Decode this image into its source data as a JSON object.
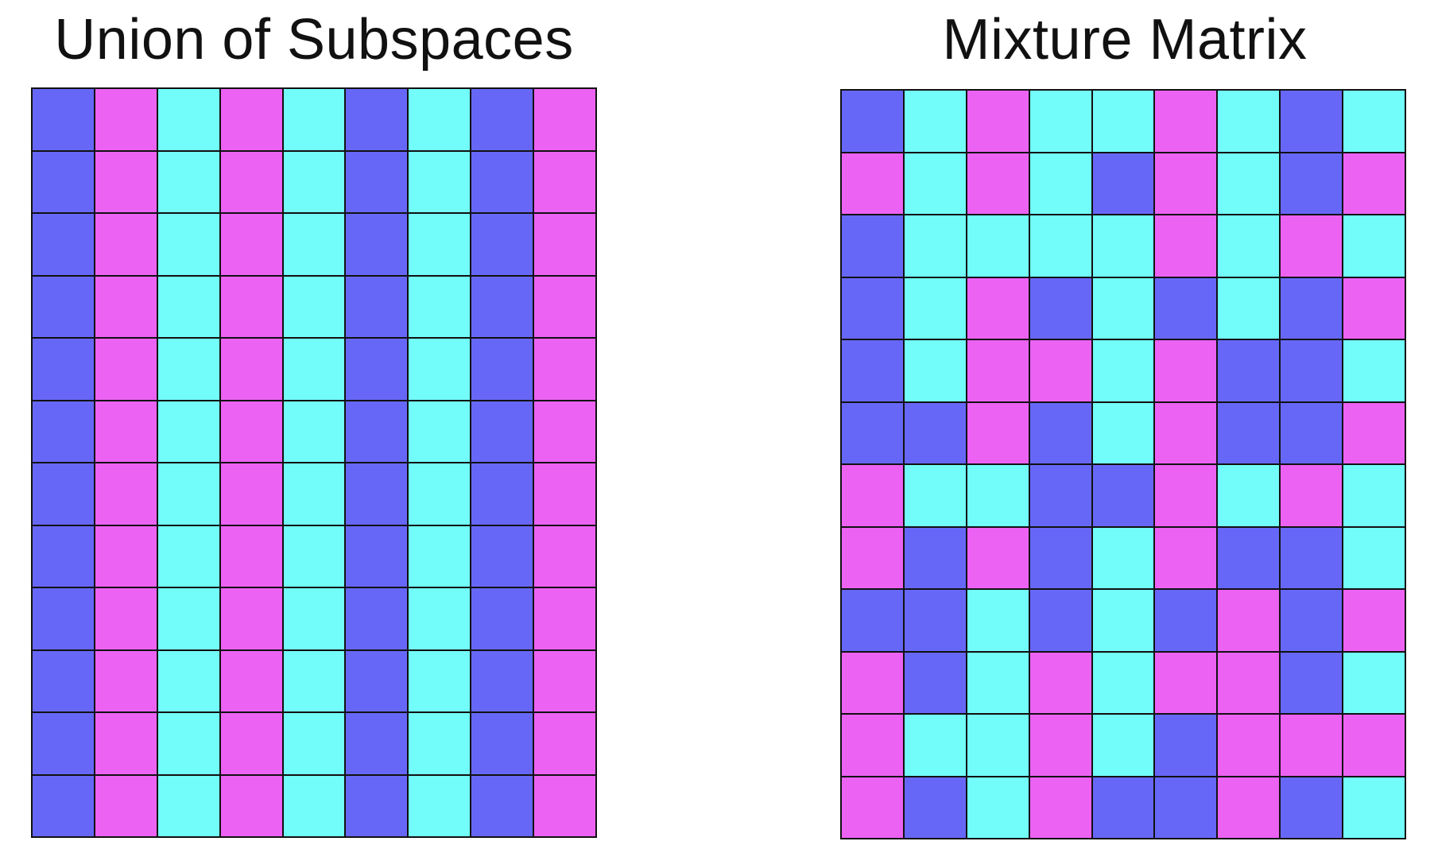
{
  "colors": {
    "B": "#6767f7",
    "M": "#ec62f3",
    "C": "#72fcfa"
  },
  "left_panel": {
    "title": "Union of Subspaces",
    "rows": [
      [
        "B",
        "M",
        "C",
        "M",
        "C",
        "B",
        "C",
        "B",
        "M"
      ],
      [
        "B",
        "M",
        "C",
        "M",
        "C",
        "B",
        "C",
        "B",
        "M"
      ],
      [
        "B",
        "M",
        "C",
        "M",
        "C",
        "B",
        "C",
        "B",
        "M"
      ],
      [
        "B",
        "M",
        "C",
        "M",
        "C",
        "B",
        "C",
        "B",
        "M"
      ],
      [
        "B",
        "M",
        "C",
        "M",
        "C",
        "B",
        "C",
        "B",
        "M"
      ],
      [
        "B",
        "M",
        "C",
        "M",
        "C",
        "B",
        "C",
        "B",
        "M"
      ],
      [
        "B",
        "M",
        "C",
        "M",
        "C",
        "B",
        "C",
        "B",
        "M"
      ],
      [
        "B",
        "M",
        "C",
        "M",
        "C",
        "B",
        "C",
        "B",
        "M"
      ],
      [
        "B",
        "M",
        "C",
        "M",
        "C",
        "B",
        "C",
        "B",
        "M"
      ],
      [
        "B",
        "M",
        "C",
        "M",
        "C",
        "B",
        "C",
        "B",
        "M"
      ],
      [
        "B",
        "M",
        "C",
        "M",
        "C",
        "B",
        "C",
        "B",
        "M"
      ],
      [
        "B",
        "M",
        "C",
        "M",
        "C",
        "B",
        "C",
        "B",
        "M"
      ]
    ]
  },
  "right_panel": {
    "title": "Mixture Matrix",
    "rows": [
      [
        "B",
        "C",
        "M",
        "C",
        "C",
        "M",
        "C",
        "B",
        "C"
      ],
      [
        "M",
        "C",
        "M",
        "C",
        "B",
        "M",
        "C",
        "B",
        "M"
      ],
      [
        "B",
        "C",
        "C",
        "C",
        "C",
        "M",
        "C",
        "M",
        "C"
      ],
      [
        "B",
        "C",
        "M",
        "B",
        "C",
        "B",
        "C",
        "B",
        "M"
      ],
      [
        "B",
        "C",
        "M",
        "M",
        "C",
        "M",
        "B",
        "B",
        "C"
      ],
      [
        "B",
        "B",
        "M",
        "B",
        "C",
        "M",
        "B",
        "B",
        "M"
      ],
      [
        "M",
        "C",
        "C",
        "B",
        "B",
        "M",
        "C",
        "M",
        "C"
      ],
      [
        "M",
        "B",
        "M",
        "B",
        "C",
        "M",
        "B",
        "B",
        "C"
      ],
      [
        "B",
        "B",
        "C",
        "B",
        "C",
        "B",
        "M",
        "B",
        "M"
      ],
      [
        "M",
        "B",
        "C",
        "M",
        "C",
        "M",
        "M",
        "B",
        "C"
      ],
      [
        "M",
        "C",
        "C",
        "M",
        "C",
        "B",
        "M",
        "M",
        "M"
      ],
      [
        "M",
        "B",
        "C",
        "M",
        "B",
        "B",
        "M",
        "B",
        "C"
      ]
    ]
  }
}
